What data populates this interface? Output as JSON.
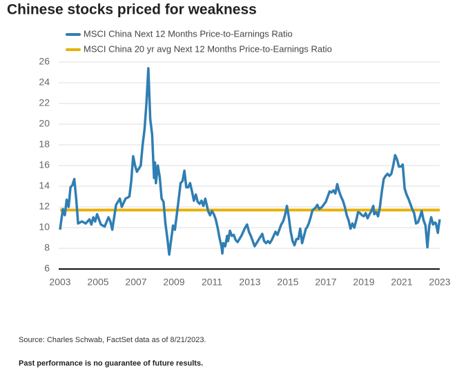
{
  "chart_data": {
    "type": "line",
    "title": "Chinese stocks priced for weakness",
    "source": "Source: Charles Schwab, FactSet data as of 8/21/2023.",
    "note": "Past performance is no guarantee of future results.",
    "xlim": [
      2003,
      2023
    ],
    "xticks": [
      2003,
      2005,
      2007,
      2009,
      2011,
      2013,
      2015,
      2017,
      2019,
      2021,
      2023
    ],
    "ylim": [
      6,
      26
    ],
    "yticks": [
      6,
      8,
      10,
      12,
      14,
      16,
      18,
      20,
      22,
      24,
      26
    ],
    "grid": true,
    "legend": "top-left",
    "series": [
      {
        "name": "MSCI China Next 12 Months Price-to-Earnings Ratio",
        "color": "#2f7eb3",
        "x": [
          2003.0,
          2003.05,
          2003.15,
          2003.25,
          2003.35,
          2003.45,
          2003.55,
          2003.65,
          2003.75,
          2003.85,
          2003.95,
          2004.15,
          2004.35,
          2004.55,
          2004.65,
          2004.75,
          2004.85,
          2004.95,
          2005.15,
          2005.35,
          2005.55,
          2005.65,
          2005.75,
          2005.85,
          2005.95,
          2006.15,
          2006.25,
          2006.45,
          2006.65,
          2006.75,
          2006.85,
          2006.95,
          2007.05,
          2007.25,
          2007.35,
          2007.45,
          2007.55,
          2007.65,
          2007.75,
          2007.85,
          2007.95,
          2008.0,
          2008.05,
          2008.15,
          2008.25,
          2008.35,
          2008.45,
          2008.55,
          2008.65,
          2008.75,
          2008.85,
          2008.95,
          2009.05,
          2009.2,
          2009.35,
          2009.45,
          2009.55,
          2009.65,
          2009.75,
          2009.85,
          2009.95,
          2010.05,
          2010.15,
          2010.25,
          2010.35,
          2010.45,
          2010.55,
          2010.65,
          2010.75,
          2010.8,
          2010.9,
          2011.0,
          2011.1,
          2011.2,
          2011.3,
          2011.4,
          2011.5,
          2011.55,
          2011.6,
          2011.7,
          2011.8,
          2011.85,
          2011.95,
          2012.05,
          2012.15,
          2012.25,
          2012.35,
          2012.45,
          2012.55,
          2012.65,
          2012.75,
          2012.85,
          2012.95,
          2013.05,
          2013.15,
          2013.25,
          2013.35,
          2013.45,
          2013.55,
          2013.65,
          2013.75,
          2013.85,
          2013.95,
          2014.05,
          2014.15,
          2014.25,
          2014.35,
          2014.45,
          2014.55,
          2014.65,
          2014.75,
          2014.85,
          2014.95,
          2015.05,
          2015.15,
          2015.25,
          2015.35,
          2015.45,
          2015.55,
          2015.65,
          2015.75,
          2015.85,
          2015.95,
          2016.0,
          2016.1,
          2016.2,
          2016.3,
          2016.45,
          2016.55,
          2016.65,
          2016.8,
          2017.0,
          2017.1,
          2017.2,
          2017.3,
          2017.4,
          2017.5,
          2017.6,
          2017.7,
          2017.8,
          2017.9,
          2018.0,
          2018.1,
          2018.2,
          2018.3,
          2018.4,
          2018.5,
          2018.6,
          2018.7,
          2018.8,
          2018.9,
          2019.0,
          2019.1,
          2019.2,
          2019.3,
          2019.4,
          2019.5,
          2019.55,
          2019.65,
          2019.75,
          2019.85,
          2019.95,
          2020.05,
          2020.15,
          2020.25,
          2020.35,
          2020.45,
          2020.55,
          2020.65,
          2020.75,
          2020.85,
          2020.95,
          2021.05,
          2021.15,
          2021.25,
          2021.35,
          2021.45,
          2021.55,
          2021.65,
          2021.75,
          2021.85,
          2021.95,
          2022.05,
          2022.15,
          2022.25,
          2022.35,
          2022.45,
          2022.55,
          2022.65,
          2022.75,
          2022.8,
          2022.9,
          2022.95,
          2023.0
        ],
        "values": [
          9.8,
          10.5,
          11.8,
          11.2,
          12.7,
          12.0,
          13.9,
          14.1,
          14.7,
          12.8,
          10.4,
          10.6,
          10.4,
          10.8,
          10.3,
          11.0,
          10.6,
          11.3,
          10.3,
          10.1,
          11.0,
          10.6,
          9.8,
          11.0,
          12.2,
          12.8,
          12.0,
          12.8,
          13.0,
          14.5,
          16.9,
          16.0,
          15.4,
          16.0,
          18.0,
          19.5,
          22.0,
          25.4,
          20.5,
          19.0,
          14.8,
          16.3,
          14.3,
          16.0,
          14.9,
          12.8,
          12.5,
          10.4,
          9.0,
          7.4,
          8.8,
          10.2,
          9.8,
          12.0,
          14.3,
          14.5,
          15.5,
          13.9,
          13.9,
          14.3,
          13.5,
          12.6,
          13.2,
          12.5,
          12.3,
          12.6,
          12.1,
          12.8,
          12.0,
          11.6,
          11.2,
          11.6,
          11.3,
          10.8,
          10.0,
          9.0,
          8.2,
          7.5,
          8.5,
          8.2,
          9.2,
          8.7,
          9.7,
          9.2,
          9.3,
          8.8,
          8.6,
          8.9,
          9.2,
          9.6,
          10.0,
          10.3,
          9.6,
          9.2,
          8.7,
          8.2,
          8.5,
          8.8,
          9.1,
          9.4,
          8.7,
          8.5,
          8.7,
          8.5,
          8.8,
          9.2,
          9.6,
          9.3,
          9.8,
          10.3,
          10.6,
          11.2,
          12.1,
          11.0,
          9.6,
          8.7,
          8.3,
          8.9,
          8.9,
          9.9,
          8.5,
          9.2,
          9.9,
          10.0,
          10.4,
          11.0,
          11.7,
          11.9,
          12.2,
          11.8,
          12.0,
          12.5,
          13.0,
          13.5,
          13.4,
          13.6,
          13.3,
          14.2,
          13.5,
          13.0,
          12.6,
          12.0,
          11.2,
          10.7,
          9.9,
          10.4,
          10.0,
          10.7,
          11.5,
          11.4,
          11.2,
          11.1,
          11.4,
          10.9,
          11.3,
          11.6,
          12.1,
          11.3,
          11.5,
          11.1,
          12.0,
          13.5,
          14.7,
          15.0,
          15.2,
          15.0,
          15.2,
          16.0,
          17.0,
          16.6,
          15.9,
          15.9,
          16.1,
          13.8,
          13.2,
          12.8,
          12.3,
          11.8,
          11.4,
          10.4,
          10.5,
          11.0,
          11.6,
          10.7,
          10.2,
          8.1,
          10.2,
          11.0,
          10.3,
          10.5,
          10.4,
          9.5,
          10.2,
          10.8
        ]
      },
      {
        "name": "MSCI China 20 yr avg Next 12 Months Price-to-Earnings Ratio",
        "color": "#e8b006",
        "x": [
          2003,
          2023
        ],
        "values": [
          11.7,
          11.7
        ]
      }
    ]
  }
}
